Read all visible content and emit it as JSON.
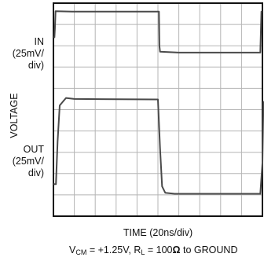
{
  "chart_data": {
    "type": "line",
    "ylabel": "VOLTAGE",
    "xlabel": "TIME (20ns/div)",
    "channel_labels": {
      "in_line1": "IN",
      "in_line2": "(25mV/",
      "in_line3": "div)",
      "out_line1": "OUT",
      "out_line2": "(25mV/",
      "out_line3": "div)"
    },
    "footnote": {
      "vcm_prefix": "V",
      "vcm_sub": "CM",
      "vcm_value": " = +1.25V, R",
      "rl_sub": "L",
      "rl_value": " = 100",
      "ohm": "Ω",
      "suffix": " to GROUND"
    },
    "x_divisions": 10,
    "y_divisions": 10,
    "grid": true,
    "series": [
      {
        "name": "IN",
        "unit": "div",
        "x": [
          0,
          0.05,
          0.07,
          0.1,
          0.9,
          5.05,
          5.07,
          5.1,
          6.0,
          9.9,
          9.92,
          9.95,
          10
        ],
        "y": [
          8.4,
          8.4,
          8.8,
          9.62,
          9.6,
          9.6,
          8.0,
          7.72,
          7.68,
          7.68,
          8.5,
          9.6,
          9.6
        ]
      },
      {
        "name": "OUT",
        "unit": "div",
        "x": [
          0,
          0.12,
          0.2,
          0.3,
          0.6,
          1.0,
          5.0,
          5.1,
          5.2,
          5.35,
          5.8,
          9.9,
          10.0,
          10.05
        ],
        "y": [
          1.5,
          1.5,
          3.5,
          5.2,
          5.55,
          5.5,
          5.48,
          3.2,
          1.4,
          1.1,
          1.05,
          1.05,
          2.5,
          5.4
        ]
      }
    ]
  }
}
